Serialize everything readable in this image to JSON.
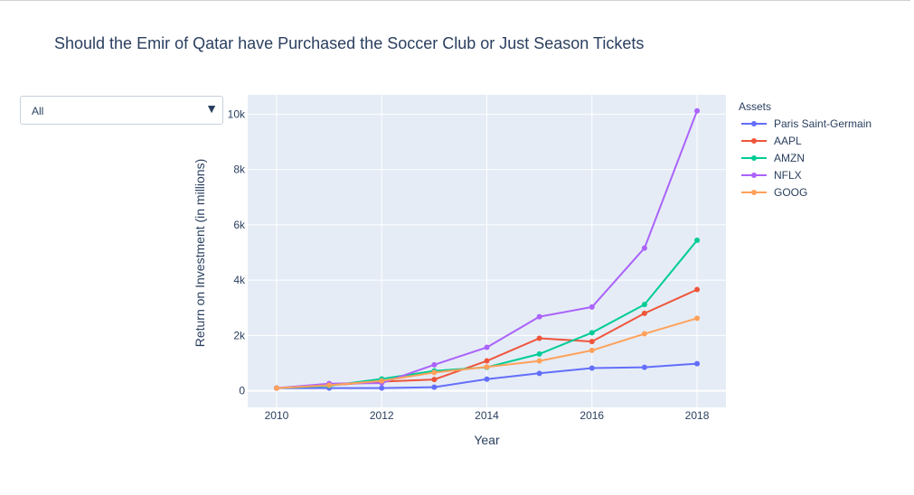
{
  "dropdown": {
    "value": "All",
    "arrow": "▼"
  },
  "colors": {
    "plot_bg": "#e5ecf6",
    "grid": "#ffffff",
    "text": "#2a3f5f"
  },
  "chart_data": {
    "type": "line",
    "title": "Should the Emir of Qatar have Purchased the Soccer Club or Just Season Tickets",
    "xlabel": "Year",
    "ylabel": "Return on Investment (in millions)",
    "xlim": [
      2009.45,
      2018.55
    ],
    "ylim": [
      -600,
      10700
    ],
    "grid": true,
    "legend_position": "right",
    "legend_title": "Assets",
    "x": [
      2010,
      2011,
      2012,
      2013,
      2014,
      2015,
      2016,
      2017,
      2018
    ],
    "x_ticks": [
      {
        "value": 2010,
        "label": "2010"
      },
      {
        "value": 2012,
        "label": "2012"
      },
      {
        "value": 2014,
        "label": "2014"
      },
      {
        "value": 2016,
        "label": "2016"
      },
      {
        "value": 2018,
        "label": "2018"
      }
    ],
    "y_ticks": [
      {
        "value": 0,
        "label": "0"
      },
      {
        "value": 2000,
        "label": "2k"
      },
      {
        "value": 4000,
        "label": "4k"
      },
      {
        "value": 6000,
        "label": "6k"
      },
      {
        "value": 8000,
        "label": "8k"
      },
      {
        "value": 10000,
        "label": "10k"
      }
    ],
    "series": [
      {
        "name": "Paris Saint-Germain",
        "color": "#636efa",
        "values": [
          100,
          100,
          100,
          130,
          420,
          630,
          820,
          850,
          980
        ]
      },
      {
        "name": "AAPL",
        "color": "#ef553b",
        "values": [
          100,
          200,
          330,
          410,
          1080,
          1900,
          1780,
          2800,
          3660
        ]
      },
      {
        "name": "AMZN",
        "color": "#00cc96",
        "values": [
          100,
          180,
          430,
          720,
          850,
          1330,
          2100,
          3120,
          5440
        ]
      },
      {
        "name": "NFLX",
        "color": "#ab63fa",
        "values": [
          100,
          260,
          280,
          940,
          1570,
          2680,
          3030,
          5160,
          10120
        ]
      },
      {
        "name": "GOOG",
        "color": "#ffa15a",
        "values": [
          100,
          200,
          360,
          660,
          860,
          1080,
          1460,
          2060,
          2620
        ]
      }
    ]
  }
}
